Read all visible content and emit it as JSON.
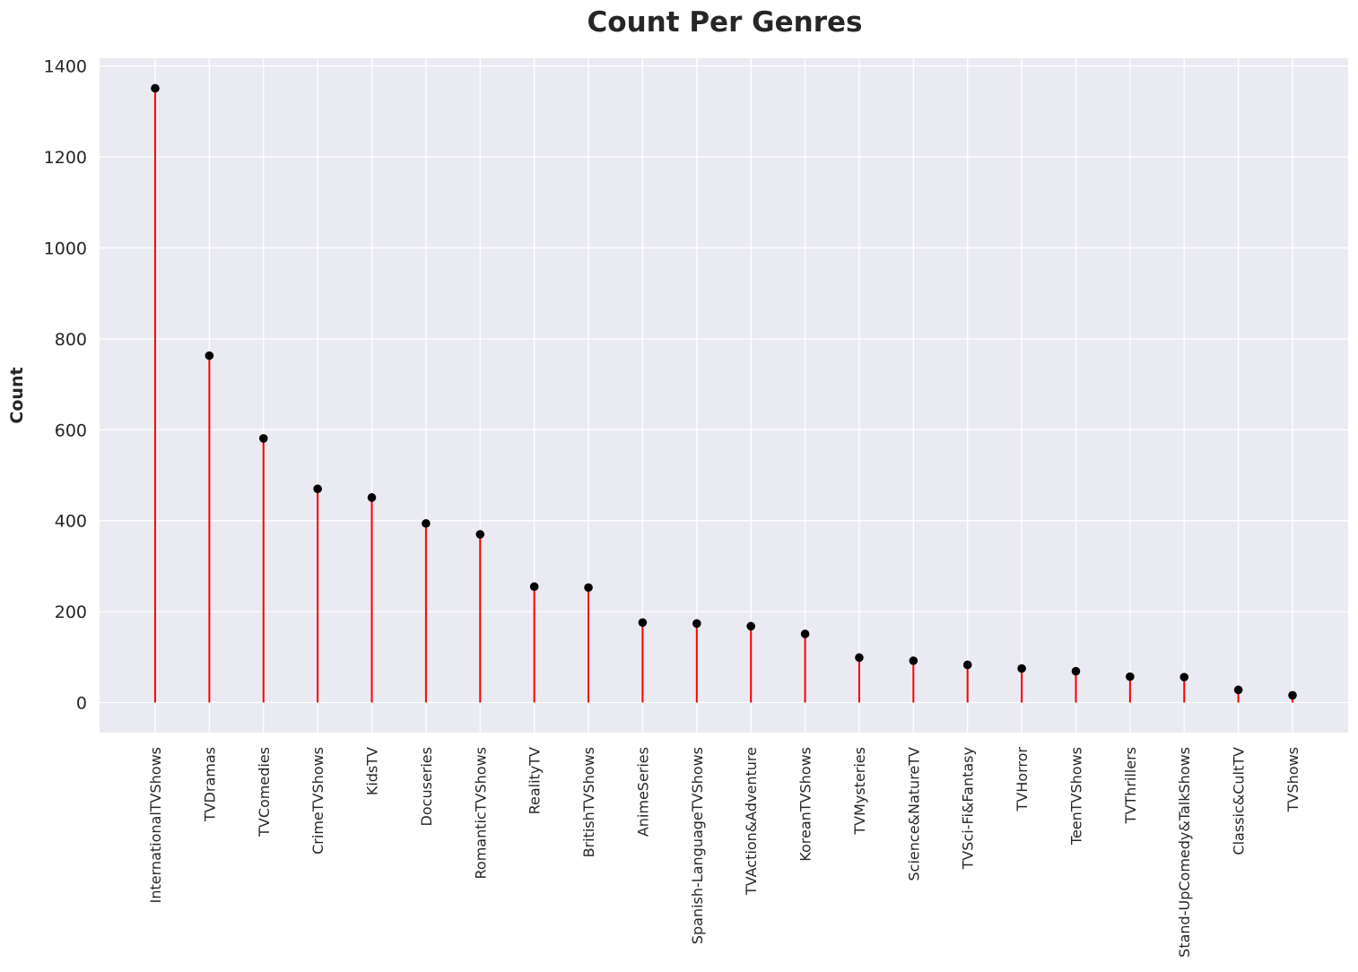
{
  "chart_data": {
    "type": "lollipop",
    "title": "Count Per Genres",
    "xlabel": "",
    "ylabel": "Count",
    "categories": [
      "InternationalTVShows",
      "TVDramas",
      "TVComedies",
      "CrimeTVShows",
      "KidsTV",
      "Docuseries",
      "RomanticTVShows",
      "RealityTV",
      "BritishTVShows",
      "AnimeSeries",
      "Spanish-LanguageTVShows",
      "TVAction&Adventure",
      "KoreanTVShows",
      "TVMysteries",
      "Science&NatureTV",
      "TVSci-Fi&Fantasy",
      "TVHorror",
      "TeenTVShows",
      "TVThrillers",
      "Stand-UpComedy&TalkShows",
      "Classic&CultTV",
      "TVShows"
    ],
    "values": [
      1351,
      763,
      581,
      470,
      451,
      394,
      370,
      255,
      253,
      176,
      174,
      168,
      151,
      99,
      92,
      83,
      75,
      69,
      57,
      56,
      28,
      16
    ],
    "ylim": [
      -66,
      1417
    ],
    "yticks": [
      0,
      200,
      400,
      600,
      800,
      1000,
      1200,
      1400
    ],
    "grid": true,
    "colors": {
      "stem": "#ff0000",
      "marker": "#000000",
      "plot_background": "#eaeaf2",
      "grid": "#ffffff",
      "text": "#262626"
    }
  }
}
